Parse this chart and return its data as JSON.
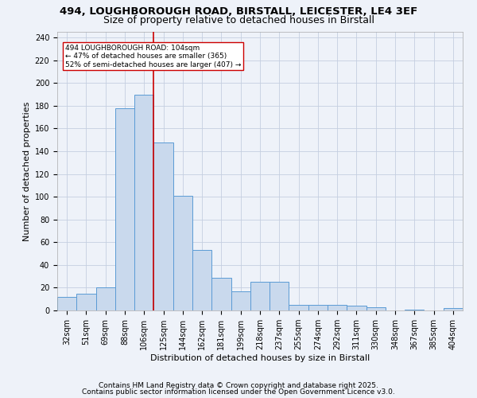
{
  "title1": "494, LOUGHBOROUGH ROAD, BIRSTALL, LEICESTER, LE4 3EF",
  "title2": "Size of property relative to detached houses in Birstall",
  "xlabel": "Distribution of detached houses by size in Birstall",
  "ylabel": "Number of detached properties",
  "categories": [
    "32sqm",
    "51sqm",
    "69sqm",
    "88sqm",
    "106sqm",
    "125sqm",
    "144sqm",
    "162sqm",
    "181sqm",
    "199sqm",
    "218sqm",
    "237sqm",
    "255sqm",
    "274sqm",
    "292sqm",
    "311sqm",
    "330sqm",
    "348sqm",
    "367sqm",
    "385sqm",
    "404sqm"
  ],
  "values": [
    12,
    15,
    20,
    178,
    190,
    148,
    101,
    53,
    29,
    17,
    25,
    25,
    5,
    5,
    5,
    4,
    3,
    0,
    1,
    0,
    2
  ],
  "bar_color": "#c9d9ed",
  "bar_edge_color": "#5b9bd5",
  "bar_edge_width": 0.7,
  "grid_color": "#c5cfe0",
  "bg_color": "#eef2f9",
  "red_line_x": 4.5,
  "red_line_color": "#cc0000",
  "annotation_text": "494 LOUGHBOROUGH ROAD: 104sqm\n← 47% of detached houses are smaller (365)\n52% of semi-detached houses are larger (407) →",
  "annotation_box_color": "#ffffff",
  "annotation_box_edge": "#cc0000",
  "ylim": [
    0,
    245
  ],
  "yticks": [
    0,
    20,
    40,
    60,
    80,
    100,
    120,
    140,
    160,
    180,
    200,
    220,
    240
  ],
  "footer1": "Contains HM Land Registry data © Crown copyright and database right 2025.",
  "footer2": "Contains public sector information licensed under the Open Government Licence v3.0.",
  "title_fontsize": 9.5,
  "title2_fontsize": 9,
  "ylabel_fontsize": 8,
  "xlabel_fontsize": 8,
  "tick_fontsize": 7,
  "annotation_fontsize": 6.5,
  "footer_fontsize": 6.5
}
